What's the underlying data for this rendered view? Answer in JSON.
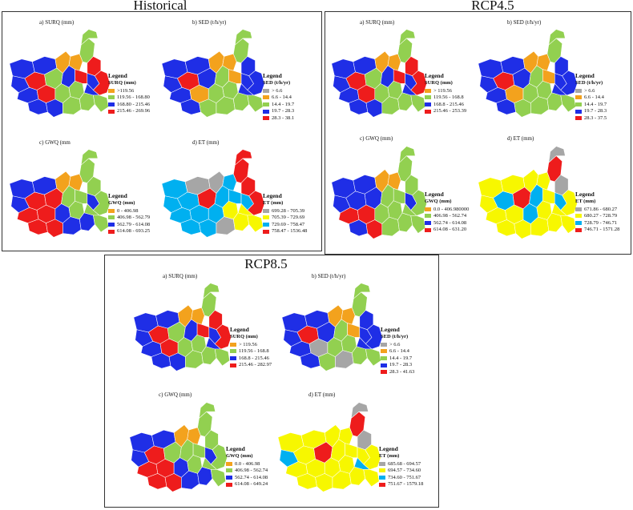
{
  "colors": {
    "gray": "#a6a6a6",
    "orange": "#f3a21d",
    "green": "#92d050",
    "blue": "#1f2ee6",
    "red": "#ee1c1c",
    "yellow": "#f7f700",
    "cyan": "#00b0f0",
    "outline": "#ffffff"
  },
  "panels": [
    {
      "title": "Historical",
      "maps": [
        {
          "label": "a) SURQ (mm)",
          "legend": {
            "title": "Legend",
            "var": "SURQ (mm)",
            "items": [
              {
                "color": "orange",
                "label": ">119.56"
              },
              {
                "color": "green",
                "label": "119.56 - 168.80"
              },
              {
                "color": "blue",
                "label": "168.80 - 215.46"
              },
              {
                "color": "red",
                "label": "215.46 - 269.96"
              }
            ]
          },
          "subbasin_colors": [
            "blue",
            "blue",
            "red",
            "blue",
            "blue",
            "red",
            "green",
            "blue",
            "blue",
            "orange",
            "blue",
            "green",
            "green",
            "orange",
            "green",
            "red",
            "green",
            "green",
            "green",
            "red",
            "blue",
            "blue",
            "green",
            "red"
          ]
        },
        {
          "label": "b) SED (t/h/yr)",
          "legend": {
            "title": "Legend",
            "var": "SED (t/h/yr)",
            "items": [
              {
                "color": "gray",
                "label": "> 6.6"
              },
              {
                "color": "orange",
                "label": "6.6 - 14.4"
              },
              {
                "color": "green",
                "label": "14.4 - 19.7"
              },
              {
                "color": "blue",
                "label": "19.7 - 28.3"
              },
              {
                "color": "red",
                "label": "28.3 - 38.1"
              }
            ]
          },
          "subbasin_colors": [
            "blue",
            "blue",
            "red",
            "blue",
            "blue",
            "orange",
            "blue",
            "blue",
            "green",
            "orange",
            "green",
            "green",
            "green",
            "orange",
            "green",
            "orange",
            "green",
            "green",
            "green",
            "blue",
            "blue",
            "blue",
            "green",
            "blue"
          ]
        },
        {
          "label": "c) GWQ (mm",
          "legend": {
            "title": "Legend",
            "var": "GWQ (mm)",
            "items": [
              {
                "color": "orange",
                "label": "0 - 406.98"
              },
              {
                "color": "green",
                "label": "406.98 - 562.79"
              },
              {
                "color": "blue",
                "label": "562.79 - 614.08"
              },
              {
                "color": "red",
                "label": "614.08 - 693.25"
              }
            ]
          },
          "subbasin_colors": [
            "blue",
            "blue",
            "red",
            "red",
            "blue",
            "red",
            "red",
            "red",
            "red",
            "orange",
            "green",
            "blue",
            "blue",
            "orange",
            "green",
            "green",
            "blue",
            "green",
            "green",
            "green",
            "blue",
            "green",
            "green",
            "green"
          ]
        },
        {
          "label": "d) ET (mm)",
          "legend": {
            "title": "Legend",
            "var": "ET (mm)",
            "items": [
              {
                "color": "gray",
                "label": "699.28 - 705.39"
              },
              {
                "color": "yellow",
                "label": "705.39 - 729.69"
              },
              {
                "color": "cyan",
                "label": "729.69 - 758.47"
              },
              {
                "color": "red",
                "label": "758.47 - 1536.48"
              }
            ]
          },
          "subbasin_colors": [
            "cyan",
            "cyan",
            "cyan",
            "cyan",
            "gray",
            "cyan",
            "red",
            "cyan",
            "cyan",
            "gray",
            "cyan",
            "cyan",
            "gray",
            "cyan",
            "yellow",
            "cyan",
            "yellow",
            "red",
            "red",
            "red",
            "cyan",
            "yellow",
            "yellow",
            "red"
          ]
        }
      ]
    },
    {
      "title": "RCP4.5",
      "maps": [
        {
          "label": "a) SURQ (mm)",
          "legend": {
            "title": "Legend",
            "var": "SURQ (mm)",
            "items": [
              {
                "color": "orange",
                "label": "> 119.56"
              },
              {
                "color": "green",
                "label": "119.56 - 168.8"
              },
              {
                "color": "blue",
                "label": "168.8 - 215.46"
              },
              {
                "color": "red",
                "label": "215.46 - 253.39"
              }
            ]
          },
          "subbasin_colors": [
            "blue",
            "blue",
            "red",
            "blue",
            "blue",
            "red",
            "green",
            "blue",
            "blue",
            "orange",
            "blue",
            "green",
            "green",
            "orange",
            "green",
            "red",
            "green",
            "green",
            "green",
            "red",
            "blue",
            "blue",
            "green",
            "red"
          ]
        },
        {
          "label": "b) SED (t/h/yr)",
          "legend": {
            "title": "Legend",
            "var": "SED (t/h/yr)",
            "items": [
              {
                "color": "gray",
                "label": "> 6.6"
              },
              {
                "color": "orange",
                "label": "6.6 - 14.4"
              },
              {
                "color": "green",
                "label": "14.4 - 19.7"
              },
              {
                "color": "blue",
                "label": "19.7 - 28.3"
              },
              {
                "color": "red",
                "label": "28.3 - 37.5"
              }
            ]
          },
          "subbasin_colors": [
            "blue",
            "blue",
            "red",
            "blue",
            "blue",
            "orange",
            "blue",
            "blue",
            "green",
            "orange",
            "green",
            "green",
            "green",
            "orange",
            "green",
            "orange",
            "green",
            "green",
            "green",
            "blue",
            "blue",
            "blue",
            "green",
            "blue"
          ]
        },
        {
          "label": "c) GWQ (mm)",
          "legend": {
            "title": "Legend",
            "var": "GWQ (mm)",
            "items": [
              {
                "color": "orange",
                "label": "0.0 - 406.980000"
              },
              {
                "color": "green",
                "label": "406.98 - 562.74"
              },
              {
                "color": "blue",
                "label": "562.74 - 614.08"
              },
              {
                "color": "red",
                "label": "614.08 - 631.20"
              }
            ]
          },
          "subbasin_colors": [
            "blue",
            "blue",
            "blue",
            "red",
            "blue",
            "red",
            "blue",
            "blue",
            "red",
            "orange",
            "green",
            "green",
            "green",
            "orange",
            "green",
            "green",
            "green",
            "green",
            "green",
            "green",
            "blue",
            "green",
            "green",
            "green"
          ]
        },
        {
          "label": "d) ET (mm)",
          "legend": {
            "title": "Legend",
            "var": "ET (mm)",
            "items": [
              {
                "color": "gray",
                "label": "671.86 - 680.27"
              },
              {
                "color": "yellow",
                "label": "680.27 - 728.79"
              },
              {
                "color": "cyan",
                "label": "728.79 - 746.71"
              },
              {
                "color": "red",
                "label": "746.71 - 1571.28"
              }
            ]
          },
          "subbasin_colors": [
            "yellow",
            "yellow",
            "cyan",
            "yellow",
            "yellow",
            "yellow",
            "red",
            "yellow",
            "yellow",
            "yellow",
            "cyan",
            "cyan",
            "yellow",
            "yellow",
            "yellow",
            "yellow",
            "yellow",
            "red",
            "gray",
            "gray",
            "cyan",
            "yellow",
            "yellow",
            "yellow"
          ]
        }
      ]
    },
    {
      "title": "RCP8.5",
      "maps": [
        {
          "label": "a) SURQ (mm)",
          "legend": {
            "title": "Legend",
            "var": "SURQ (mm)",
            "items": [
              {
                "color": "orange",
                "label": "> 119.56"
              },
              {
                "color": "green",
                "label": "119.56 - 168.8"
              },
              {
                "color": "blue",
                "label": "168.8 - 215.46"
              },
              {
                "color": "red",
                "label": "215.46 - 282.97"
              }
            ]
          },
          "subbasin_colors": [
            "blue",
            "blue",
            "red",
            "blue",
            "blue",
            "red",
            "green",
            "blue",
            "blue",
            "orange",
            "blue",
            "green",
            "green",
            "orange",
            "green",
            "red",
            "green",
            "green",
            "green",
            "red",
            "blue",
            "blue",
            "green",
            "red"
          ]
        },
        {
          "label": "b) SED (t/h/yr)",
          "legend": {
            "title": "Legend",
            "var": "SED (t/h/yr)",
            "items": [
              {
                "color": "gray",
                "label": "> 6.6"
              },
              {
                "color": "orange",
                "label": "6.6 - 14.4"
              },
              {
                "color": "green",
                "label": "14.4 - 19.7"
              },
              {
                "color": "blue",
                "label": "19.7 - 28.3"
              },
              {
                "color": "red",
                "label": "28.3 - 41.63"
              }
            ]
          },
          "subbasin_colors": [
            "blue",
            "blue",
            "red",
            "blue",
            "blue",
            "gray",
            "blue",
            "blue",
            "green",
            "orange",
            "green",
            "green",
            "gray",
            "orange",
            "green",
            "orange",
            "green",
            "green",
            "green",
            "blue",
            "blue",
            "blue",
            "green",
            "blue"
          ]
        },
        {
          "label": "c) GWQ (mm)",
          "legend": {
            "title": "Legend",
            "var": "GWQ (mm)",
            "items": [
              {
                "color": "orange",
                "label": "0.0 - 406.98"
              },
              {
                "color": "green",
                "label": "406.98 - 562.74"
              },
              {
                "color": "blue",
                "label": "562.74 - 614.08"
              },
              {
                "color": "red",
                "label": "614.08 - 649.24"
              }
            ]
          },
          "subbasin_colors": [
            "blue",
            "blue",
            "red",
            "red",
            "blue",
            "red",
            "green",
            "red",
            "red",
            "orange",
            "green",
            "blue",
            "blue",
            "orange",
            "green",
            "green",
            "blue",
            "green",
            "green",
            "green",
            "blue",
            "green",
            "green",
            "green"
          ]
        },
        {
          "label": "d) ET (mm)",
          "legend": {
            "title": "Legend",
            "var": "ET (mm)",
            "items": [
              {
                "color": "gray",
                "label": "685.68 - 694.57"
              },
              {
                "color": "yellow",
                "label": "694.57 - 734.60"
              },
              {
                "color": "cyan",
                "label": "734.60 - 751.67"
              },
              {
                "color": "red",
                "label": "751.67 - 1579.18"
              }
            ]
          },
          "subbasin_colors": [
            "yellow",
            "cyan",
            "yellow",
            "yellow",
            "yellow",
            "yellow",
            "red",
            "yellow",
            "yellow",
            "yellow",
            "yellow",
            "yellow",
            "yellow",
            "yellow",
            "yellow",
            "yellow",
            "yellow",
            "red",
            "gray",
            "gray",
            "yellow",
            "cyan",
            "yellow",
            "yellow"
          ]
        }
      ]
    }
  ]
}
